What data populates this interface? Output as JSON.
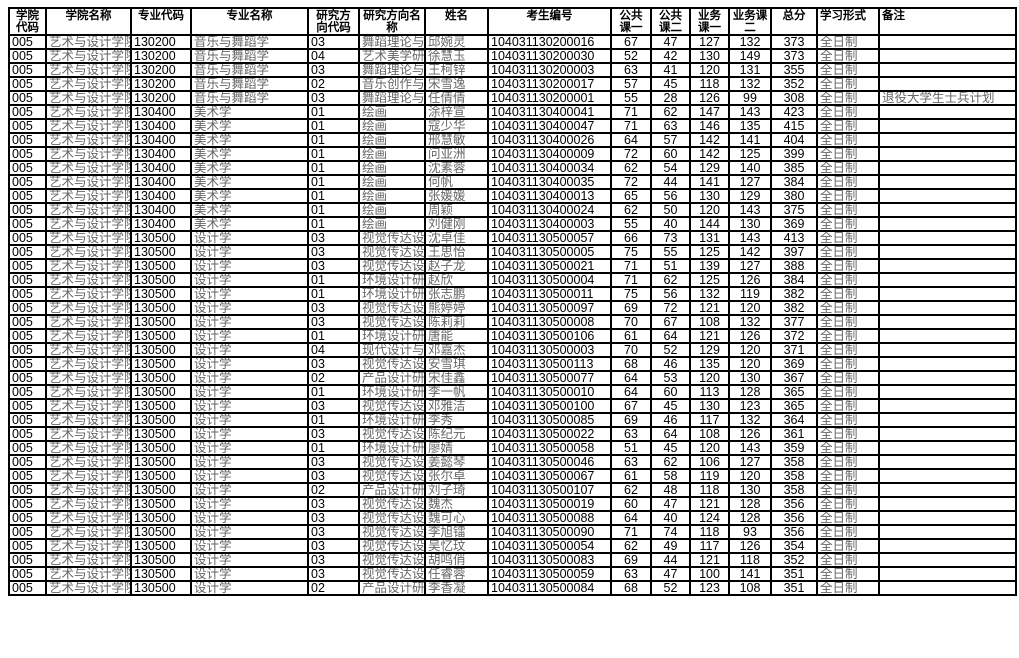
{
  "headers": [
    "学院代码",
    "学院名称",
    "专业代码",
    "专业名称",
    "研究方向代码",
    "研究方向名称",
    "姓名",
    "考生编号",
    "公共课一",
    "公共课二",
    "业务课一",
    "业务课二",
    "总分",
    "学习形式",
    "备注"
  ],
  "college_code": "005",
  "college_name": "艺术与设计学院",
  "study_mode": "全日制",
  "rows": [
    [
      "130200",
      "音乐与舞蹈学",
      "03",
      "舞蹈理论与",
      "邱婉灵",
      "104031130200016",
      "67",
      "47",
      "127",
      "132",
      "373",
      ""
    ],
    [
      "130200",
      "音乐与舞蹈学",
      "04",
      "艺术美学研",
      "徐慧玉",
      "104031130200030",
      "52",
      "42",
      "130",
      "149",
      "373",
      ""
    ],
    [
      "130200",
      "音乐与舞蹈学",
      "03",
      "舞蹈理论与",
      "王柯锌",
      "104031130200003",
      "63",
      "41",
      "120",
      "131",
      "355",
      ""
    ],
    [
      "130200",
      "音乐与舞蹈学",
      "02",
      "音乐创作与",
      "宋雪逸",
      "104031130200017",
      "57",
      "45",
      "118",
      "132",
      "352",
      ""
    ],
    [
      "130200",
      "音乐与舞蹈学",
      "03",
      "舞蹈理论与",
      "任倩倩",
      "104031130200001",
      "55",
      "28",
      "126",
      "99",
      "308",
      "退役大学生士兵计划"
    ],
    [
      "130400",
      "美术学",
      "01",
      "绘画",
      "涂梓宣",
      "104031130400041",
      "71",
      "62",
      "147",
      "143",
      "423",
      ""
    ],
    [
      "130400",
      "美术学",
      "01",
      "绘画",
      "寇少华",
      "104031130400047",
      "71",
      "63",
      "146",
      "135",
      "415",
      ""
    ],
    [
      "130400",
      "美术学",
      "01",
      "绘画",
      "邢慧敏",
      "104031130400026",
      "64",
      "57",
      "142",
      "141",
      "404",
      ""
    ],
    [
      "130400",
      "美术学",
      "01",
      "绘画",
      "问亚洲",
      "104031130400009",
      "72",
      "60",
      "142",
      "125",
      "399",
      ""
    ],
    [
      "130400",
      "美术学",
      "01",
      "绘画",
      "沈素蓉",
      "104031130400034",
      "62",
      "54",
      "129",
      "140",
      "385",
      ""
    ],
    [
      "130400",
      "美术学",
      "01",
      "绘画",
      "何帆",
      "104031130400035",
      "72",
      "44",
      "141",
      "127",
      "384",
      ""
    ],
    [
      "130400",
      "美术学",
      "01",
      "绘画",
      "张媛媛",
      "104031130400013",
      "65",
      "56",
      "130",
      "129",
      "380",
      ""
    ],
    [
      "130400",
      "美术学",
      "01",
      "绘画",
      "周颖",
      "104031130400024",
      "62",
      "50",
      "120",
      "143",
      "375",
      ""
    ],
    [
      "130400",
      "美术学",
      "01",
      "绘画",
      "刘健刚",
      "104031130400003",
      "55",
      "40",
      "144",
      "130",
      "369",
      ""
    ],
    [
      "130500",
      "设计学",
      "03",
      "视觉传达设",
      "沈卓佳",
      "104031130500057",
      "66",
      "73",
      "131",
      "143",
      "413",
      ""
    ],
    [
      "130500",
      "设计学",
      "03",
      "视觉传达设",
      "王思怡",
      "104031130500005",
      "75",
      "55",
      "125",
      "142",
      "397",
      ""
    ],
    [
      "130500",
      "设计学",
      "03",
      "视觉传达设",
      "赵子龙",
      "104031130500021",
      "71",
      "51",
      "139",
      "127",
      "388",
      ""
    ],
    [
      "130500",
      "设计学",
      "01",
      "环境设计研",
      "赵欣",
      "104031130500004",
      "71",
      "62",
      "125",
      "126",
      "384",
      ""
    ],
    [
      "130500",
      "设计学",
      "01",
      "环境设计研",
      "张志鹏",
      "104031130500011",
      "75",
      "56",
      "132",
      "119",
      "382",
      ""
    ],
    [
      "130500",
      "设计学",
      "03",
      "视觉传达设",
      "熊婷婷",
      "104031130500097",
      "69",
      "72",
      "121",
      "120",
      "382",
      ""
    ],
    [
      "130500",
      "设计学",
      "03",
      "视觉传达设",
      "陈莉莉",
      "104031130500008",
      "70",
      "67",
      "108",
      "132",
      "377",
      ""
    ],
    [
      "130500",
      "设计学",
      "01",
      "环境设计研",
      "唐能",
      "104031130500106",
      "61",
      "64",
      "121",
      "126",
      "372",
      ""
    ],
    [
      "130500",
      "设计学",
      "04",
      "现代设计与",
      "邓嘉杰",
      "104031130500003",
      "70",
      "52",
      "129",
      "120",
      "371",
      ""
    ],
    [
      "130500",
      "设计学",
      "03",
      "视觉传达设",
      "安雪琪",
      "104031130500113",
      "68",
      "46",
      "135",
      "120",
      "369",
      ""
    ],
    [
      "130500",
      "设计学",
      "02",
      "产品设计研",
      "宋佳鑫",
      "104031130500077",
      "64",
      "53",
      "120",
      "130",
      "367",
      ""
    ],
    [
      "130500",
      "设计学",
      "01",
      "环境设计研",
      "李一帆",
      "104031130500010",
      "64",
      "60",
      "113",
      "128",
      "365",
      ""
    ],
    [
      "130500",
      "设计学",
      "03",
      "视觉传达设",
      "邓雅洁",
      "104031130500100",
      "67",
      "45",
      "130",
      "123",
      "365",
      ""
    ],
    [
      "130500",
      "设计学",
      "01",
      "环境设计研",
      "李秀",
      "104031130500085",
      "69",
      "46",
      "117",
      "132",
      "364",
      ""
    ],
    [
      "130500",
      "设计学",
      "03",
      "视觉传达设",
      "陈纪元",
      "104031130500022",
      "63",
      "64",
      "108",
      "126",
      "361",
      ""
    ],
    [
      "130500",
      "设计学",
      "01",
      "环境设计研",
      "廖婧",
      "104031130500058",
      "51",
      "45",
      "120",
      "143",
      "359",
      ""
    ],
    [
      "130500",
      "设计学",
      "03",
      "视觉传达设",
      "姜懿琴",
      "104031130500046",
      "63",
      "62",
      "106",
      "127",
      "358",
      ""
    ],
    [
      "130500",
      "设计学",
      "03",
      "视觉传达设",
      "张尔卓",
      "104031130500067",
      "61",
      "58",
      "119",
      "120",
      "358",
      ""
    ],
    [
      "130500",
      "设计学",
      "02",
      "产品设计研",
      "刘子琦",
      "104031130500107",
      "62",
      "48",
      "118",
      "130",
      "358",
      ""
    ],
    [
      "130500",
      "设计学",
      "03",
      "视觉传达设",
      "魏杰",
      "104031130500019",
      "60",
      "47",
      "121",
      "128",
      "356",
      ""
    ],
    [
      "130500",
      "设计学",
      "03",
      "视觉传达设",
      "魏可心",
      "104031130500088",
      "64",
      "40",
      "124",
      "128",
      "356",
      ""
    ],
    [
      "130500",
      "设计学",
      "03",
      "视觉传达设",
      "李旭镭",
      "104031130500090",
      "71",
      "74",
      "118",
      "93",
      "356",
      ""
    ],
    [
      "130500",
      "设计学",
      "03",
      "视觉传达设",
      "吴忆玟",
      "104031130500054",
      "62",
      "49",
      "117",
      "126",
      "354",
      ""
    ],
    [
      "130500",
      "设计学",
      "03",
      "视觉传达设",
      "胡鸣俏",
      "104031130500083",
      "69",
      "44",
      "121",
      "118",
      "352",
      ""
    ],
    [
      "130500",
      "设计学",
      "03",
      "视觉传达设",
      "任睿蓉",
      "104031130500059",
      "63",
      "47",
      "100",
      "141",
      "351",
      ""
    ],
    [
      "130500",
      "设计学",
      "02",
      "产品设计研",
      "李香凝",
      "104031130500084",
      "68",
      "52",
      "123",
      "108",
      "351",
      ""
    ]
  ]
}
